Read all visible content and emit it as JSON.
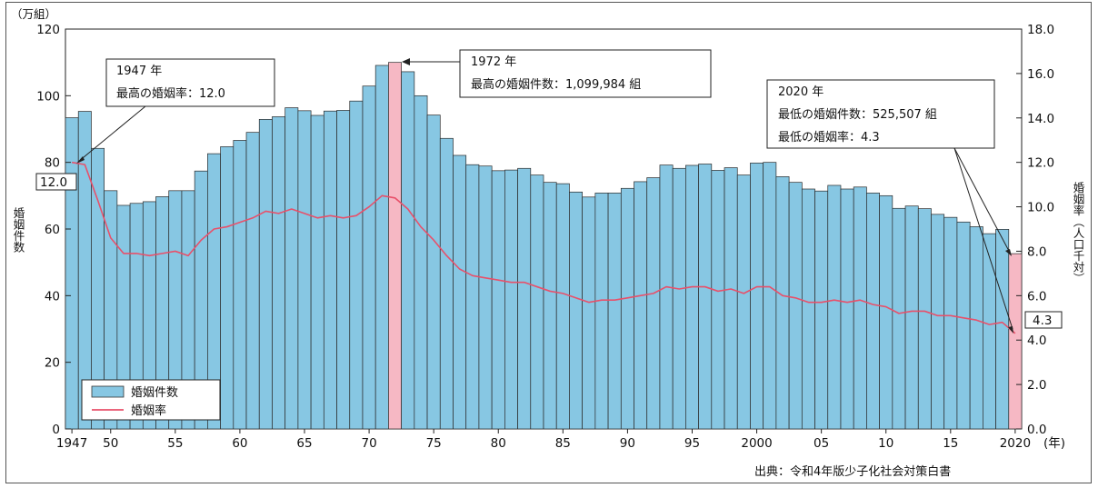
{
  "chart_data": {
    "type": "bar",
    "left_unit": "（万組）",
    "ylabel_left": "婚姻件数",
    "ylabel_right": "婚姻率（人口千対）",
    "xunit": "(年)",
    "ylim_left": [
      0,
      120
    ],
    "ylim_right": [
      0,
      18
    ],
    "yticks_left": [
      "0",
      "20",
      "40",
      "60",
      "80",
      "100",
      "120"
    ],
    "yticks_right": [
      "0.0",
      "2.0",
      "4.0",
      "6.0",
      "8.0",
      "10.0",
      "12.0",
      "14.0",
      "16.0",
      "18.0"
    ],
    "xtick_labels": [
      {
        "year": 1947,
        "label": "1947"
      },
      {
        "year": 1950,
        "label": "50"
      },
      {
        "year": 1955,
        "label": "55"
      },
      {
        "year": 1960,
        "label": "60"
      },
      {
        "year": 1965,
        "label": "65"
      },
      {
        "year": 1970,
        "label": "70"
      },
      {
        "year": 1975,
        "label": "75"
      },
      {
        "year": 1980,
        "label": "80"
      },
      {
        "year": 1985,
        "label": "85"
      },
      {
        "year": 1990,
        "label": "90"
      },
      {
        "year": 1995,
        "label": "95"
      },
      {
        "year": 2000,
        "label": "2000"
      },
      {
        "year": 2005,
        "label": "05"
      },
      {
        "year": 2010,
        "label": "10"
      },
      {
        "year": 2015,
        "label": "15"
      },
      {
        "year": 2020,
        "label": "2020"
      }
    ],
    "bar_color": "#87c7e3",
    "highlight_color": "#f6b8c4",
    "line_color": "#e8506a",
    "highlight_years": [
      1972,
      2020
    ],
    "series": [
      {
        "name": "婚姻件数",
        "type": "bar",
        "axis": "left",
        "x": [
          1947,
          1948,
          1949,
          1950,
          1951,
          1952,
          1953,
          1954,
          1955,
          1956,
          1957,
          1958,
          1959,
          1960,
          1961,
          1962,
          1963,
          1964,
          1965,
          1966,
          1967,
          1968,
          1969,
          1970,
          1971,
          1972,
          1973,
          1974,
          1975,
          1976,
          1977,
          1978,
          1979,
          1980,
          1981,
          1982,
          1983,
          1984,
          1985,
          1986,
          1987,
          1988,
          1989,
          1990,
          1991,
          1992,
          1993,
          1994,
          1995,
          1996,
          1997,
          1998,
          1999,
          2000,
          2001,
          2002,
          2003,
          2004,
          2005,
          2006,
          2007,
          2008,
          2009,
          2010,
          2011,
          2012,
          2013,
          2014,
          2015,
          2016,
          2017,
          2018,
          2019,
          2020
        ],
        "values": [
          93.4,
          95.3,
          84.2,
          71.5,
          67.1,
          67.7,
          68.2,
          69.7,
          71.5,
          71.5,
          77.4,
          82.6,
          84.7,
          86.6,
          89.0,
          92.9,
          93.7,
          96.4,
          95.5,
          94.1,
          95.4,
          95.6,
          98.4,
          102.9,
          109.1,
          110.0,
          107.2,
          100.0,
          94.2,
          87.2,
          82.1,
          79.3,
          78.9,
          77.5,
          77.7,
          78.2,
          76.2,
          74.0,
          73.6,
          71.1,
          69.6,
          70.8,
          70.8,
          72.2,
          74.2,
          75.4,
          79.2,
          78.2,
          79.1,
          79.5,
          77.6,
          78.4,
          76.2,
          79.8,
          80.0,
          75.7,
          74.0,
          72.0,
          71.4,
          73.1,
          72.0,
          72.6,
          70.8,
          70.0,
          66.2,
          66.9,
          66.1,
          64.4,
          63.5,
          62.1,
          60.7,
          58.6,
          59.9,
          52.6
        ]
      },
      {
        "name": "婚姻率",
        "type": "line",
        "axis": "right",
        "x": [
          1947,
          1948,
          1949,
          1950,
          1951,
          1952,
          1953,
          1954,
          1955,
          1956,
          1957,
          1958,
          1959,
          1960,
          1961,
          1962,
          1963,
          1964,
          1965,
          1966,
          1967,
          1968,
          1969,
          1970,
          1971,
          1972,
          1973,
          1974,
          1975,
          1976,
          1977,
          1978,
          1979,
          1980,
          1981,
          1982,
          1983,
          1984,
          1985,
          1986,
          1987,
          1988,
          1989,
          1990,
          1991,
          1992,
          1993,
          1994,
          1995,
          1996,
          1997,
          1998,
          1999,
          2000,
          2001,
          2002,
          2003,
          2004,
          2005,
          2006,
          2007,
          2008,
          2009,
          2010,
          2011,
          2012,
          2013,
          2014,
          2015,
          2016,
          2017,
          2018,
          2019,
          2020
        ],
        "values": [
          12.0,
          11.9,
          10.3,
          8.6,
          7.9,
          7.9,
          7.8,
          7.9,
          8.0,
          7.8,
          8.5,
          9.0,
          9.1,
          9.3,
          9.5,
          9.8,
          9.7,
          9.9,
          9.7,
          9.5,
          9.6,
          9.5,
          9.6,
          10.0,
          10.5,
          10.4,
          9.9,
          9.1,
          8.5,
          7.8,
          7.2,
          6.9,
          6.8,
          6.7,
          6.6,
          6.6,
          6.4,
          6.2,
          6.1,
          5.9,
          5.7,
          5.8,
          5.8,
          5.9,
          6.0,
          6.1,
          6.4,
          6.3,
          6.4,
          6.4,
          6.2,
          6.3,
          6.1,
          6.4,
          6.4,
          6.0,
          5.9,
          5.7,
          5.7,
          5.8,
          5.7,
          5.8,
          5.6,
          5.5,
          5.2,
          5.3,
          5.3,
          5.1,
          5.1,
          5.0,
          4.9,
          4.7,
          4.8,
          4.3
        ]
      }
    ],
    "legend_position": "bottom-left",
    "legend": [
      {
        "label": "婚姻件数",
        "kind": "bar"
      },
      {
        "label": "婚姻率",
        "kind": "line"
      }
    ],
    "annotations": {
      "a1947": {
        "line1": "1947 年",
        "line2": "最高の婚姻率：12.0"
      },
      "a1972": {
        "line1": "1972 年",
        "line2": "最高の婚姻件数：1,099,984 組"
      },
      "a2020": {
        "line1": "2020 年",
        "line2": "最低の婚姻件数：525,507 組",
        "line3": "最低の婚姻率：4.3"
      },
      "val_left": "12.0",
      "val_right": "4.3"
    },
    "source": "出典：令和4年版少子化社会対策白書"
  }
}
